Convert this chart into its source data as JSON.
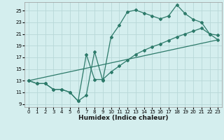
{
  "xlabel": "Humidex (Indice chaleur)",
  "background_color": "#d4eeee",
  "grid_color": "#b8d8d8",
  "line_color": "#2d7a6a",
  "xlim": [
    -0.5,
    23.5
  ],
  "ylim": [
    8.5,
    26.5
  ],
  "xticks": [
    0,
    1,
    2,
    3,
    4,
    5,
    6,
    7,
    8,
    9,
    10,
    11,
    12,
    13,
    14,
    15,
    16,
    17,
    18,
    19,
    20,
    21,
    22,
    23
  ],
  "yticks": [
    9,
    11,
    13,
    15,
    17,
    19,
    21,
    23,
    25
  ],
  "line1_x": [
    0,
    1,
    2,
    3,
    4,
    5,
    6,
    7,
    8,
    9,
    10,
    11,
    12,
    13,
    14,
    15,
    16,
    17,
    18,
    19,
    20,
    21,
    22,
    23
  ],
  "line1_y": [
    13,
    12.5,
    12.5,
    11.5,
    11.5,
    11,
    9.5,
    10.5,
    18,
    13,
    20.5,
    22.5,
    24.8,
    25.1,
    24.6,
    24.1,
    23.6,
    24.1,
    26.0,
    24.5,
    23.5,
    23.0,
    21.0,
    20.8
  ],
  "line2_x": [
    0,
    1,
    2,
    3,
    4,
    5,
    6,
    7,
    8,
    9,
    10,
    11,
    12,
    13,
    14,
    15,
    16,
    17,
    18,
    19,
    20,
    21,
    22,
    23
  ],
  "line2_y": [
    13,
    12.5,
    12.5,
    11.5,
    11.5,
    11,
    9.5,
    17.5,
    13.2,
    13.2,
    14.5,
    15.5,
    16.5,
    17.5,
    18.2,
    18.8,
    19.3,
    19.9,
    20.5,
    21.0,
    21.5,
    22.0,
    21.0,
    20.0
  ],
  "line3_x": [
    0,
    23
  ],
  "line3_y": [
    13,
    20.0
  ]
}
